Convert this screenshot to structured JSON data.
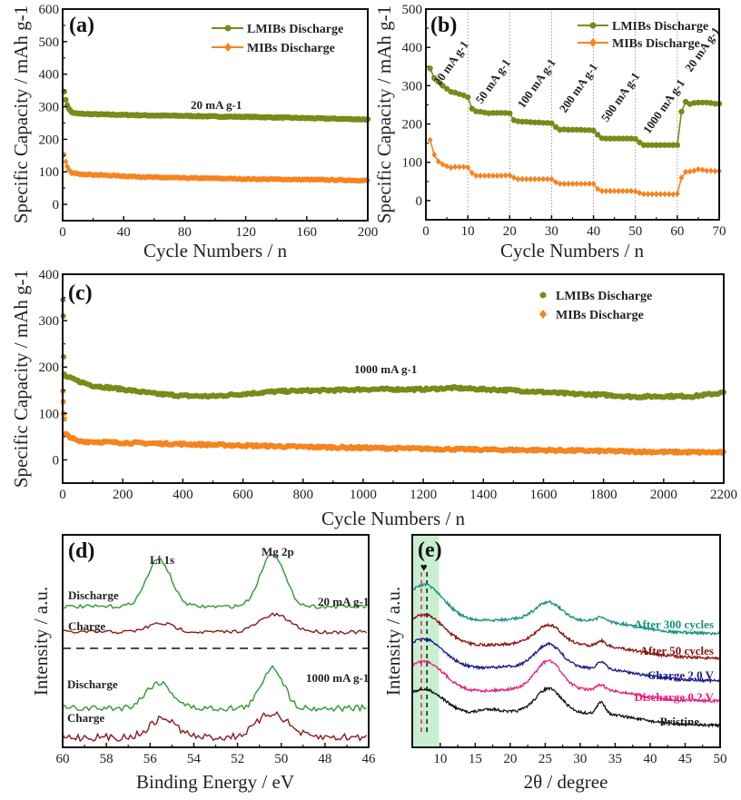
{
  "colors": {
    "lmibs": "#7a8a1a",
    "mibs": "#f5841f",
    "xps_discharge": "#2e9a2e",
    "xps_charge": "#8b1a1a",
    "xrd_300": "#1a9080",
    "xrd_50": "#8b1010",
    "xrd_charge": "#1a1a8a",
    "xrd_discharge": "#e8207a",
    "xrd_pristine": "#111111",
    "highlight": "#c8f0d0"
  },
  "chart_data": [
    {
      "id": "a",
      "type": "scatter",
      "panel_label": "(a)",
      "title": "",
      "xlabel": "Cycle Numbers / n",
      "ylabel": "Specific Capacity / mAh g-1",
      "xlim": [
        0,
        200
      ],
      "ylim": [
        -50,
        600
      ],
      "xticks": [
        0,
        40,
        80,
        120,
        160,
        200
      ],
      "yticks": [
        0,
        100,
        200,
        300,
        400,
        500,
        600
      ],
      "legend": [
        "LMIBs Discharge",
        "MIBs Discharge"
      ],
      "legend_position": "top-right",
      "annotations": [
        {
          "text": "20 mA g-1",
          "x": 100,
          "y": 310
        }
      ],
      "series": [
        {
          "name": "LMIBs Discharge",
          "x": [
            1,
            2,
            3,
            4,
            5,
            6,
            8,
            10,
            20,
            40,
            60,
            80,
            100,
            120,
            140,
            160,
            180,
            200
          ],
          "values": [
            348,
            320,
            305,
            295,
            288,
            283,
            280,
            279,
            277,
            275,
            273,
            272,
            270,
            269,
            267,
            265,
            263,
            261
          ]
        },
        {
          "name": "MIBs Discharge",
          "x": [
            1,
            2,
            3,
            4,
            5,
            6,
            8,
            10,
            20,
            40,
            60,
            80,
            100,
            120,
            140,
            160,
            180,
            200
          ],
          "values": [
            152,
            130,
            115,
            106,
            100,
            97,
            95,
            94,
            91,
            87,
            83,
            81,
            80,
            78,
            77,
            76,
            75,
            73
          ]
        }
      ]
    },
    {
      "id": "b",
      "type": "line",
      "panel_label": "(b)",
      "title": "",
      "xlabel": "Cycle Numbers / n",
      "ylabel": "Specific Capacity / mAh g-1",
      "xlim": [
        0,
        70
      ],
      "ylim": [
        -50,
        500
      ],
      "xticks": [
        0,
        10,
        20,
        30,
        40,
        50,
        60,
        70
      ],
      "yticks": [
        0,
        100,
        200,
        300,
        400,
        500
      ],
      "vlines": [
        10,
        20,
        30,
        40,
        50,
        60
      ],
      "legend": [
        "LMIBs Discharge",
        "MIBs Discharge"
      ],
      "legend_position": "top-right",
      "rate_labels": [
        {
          "text": "20 mA g-1",
          "x": 5
        },
        {
          "text": "50 mA g-1",
          "x": 15
        },
        {
          "text": "100 mA g-1",
          "x": 25
        },
        {
          "text": "200 mA g-1",
          "x": 35
        },
        {
          "text": "500 mA g-1",
          "x": 45
        },
        {
          "text": "1000 mA g-1",
          "x": 55
        },
        {
          "text": "20 mA g-1",
          "x": 65
        }
      ],
      "series": [
        {
          "name": "LMIBs Discharge",
          "x": [
            1,
            2,
            3,
            4,
            5,
            6,
            7,
            8,
            9,
            10,
            11,
            12,
            13,
            14,
            15,
            16,
            17,
            18,
            19,
            20,
            21,
            22,
            23,
            24,
            25,
            26,
            27,
            28,
            29,
            30,
            31,
            32,
            33,
            34,
            35,
            36,
            37,
            38,
            39,
            40,
            41,
            42,
            43,
            44,
            45,
            46,
            47,
            48,
            49,
            50,
            51,
            52,
            53,
            54,
            55,
            56,
            57,
            58,
            59,
            60,
            61,
            62,
            63,
            64,
            65,
            66,
            67,
            68,
            69,
            70
          ],
          "values": [
            345,
            320,
            310,
            300,
            292,
            284,
            282,
            278,
            275,
            270,
            240,
            233,
            232,
            230,
            228,
            229,
            229,
            229,
            229,
            228,
            210,
            207,
            206,
            206,
            205,
            204,
            204,
            203,
            203,
            202,
            192,
            185,
            186,
            185,
            185,
            185,
            185,
            184,
            184,
            183,
            172,
            163,
            162,
            162,
            162,
            162,
            162,
            162,
            162,
            161,
            152,
            145,
            145,
            145,
            145,
            145,
            145,
            145,
            145,
            145,
            232,
            258,
            252,
            255,
            256,
            256,
            256,
            255,
            253,
            253
          ]
        },
        {
          "name": "MIBs Discharge",
          "x": [
            1,
            2,
            3,
            4,
            5,
            6,
            7,
            8,
            9,
            10,
            11,
            12,
            13,
            14,
            15,
            16,
            17,
            18,
            19,
            20,
            21,
            22,
            23,
            24,
            25,
            26,
            27,
            28,
            29,
            30,
            31,
            32,
            33,
            34,
            35,
            36,
            37,
            38,
            39,
            40,
            41,
            42,
            43,
            44,
            45,
            46,
            47,
            48,
            49,
            50,
            51,
            52,
            53,
            54,
            55,
            56,
            57,
            58,
            59,
            60,
            61,
            62,
            63,
            64,
            65,
            66,
            67,
            68,
            69,
            70
          ],
          "values": [
            158,
            120,
            102,
            95,
            90,
            86,
            88,
            88,
            88,
            87,
            72,
            65,
            65,
            65,
            65,
            65,
            65,
            65,
            66,
            66,
            60,
            56,
            56,
            56,
            56,
            56,
            56,
            56,
            56,
            56,
            48,
            44,
            44,
            44,
            44,
            44,
            44,
            44,
            44,
            44,
            30,
            25,
            25,
            25,
            25,
            25,
            25,
            25,
            25,
            24,
            20,
            17,
            17,
            17,
            17,
            17,
            17,
            17,
            16,
            18,
            60,
            75,
            76,
            78,
            82,
            80,
            78,
            78,
            77,
            77
          ]
        }
      ]
    },
    {
      "id": "c",
      "type": "scatter",
      "panel_label": "(c)",
      "title": "",
      "xlabel": "Cycle Numbers / n",
      "ylabel": "Specific Capacity / mAh g-1",
      "xlim": [
        0,
        2200
      ],
      "ylim": [
        -50,
        400
      ],
      "xticks": [
        0,
        200,
        400,
        600,
        800,
        1000,
        1200,
        1400,
        1600,
        1800,
        2000,
        2200
      ],
      "yticks": [
        0,
        100,
        200,
        300,
        400
      ],
      "legend": [
        "LMIBs Discharge",
        "MIBs Discharge"
      ],
      "legend_position": "top-right",
      "annotations": [
        {
          "text": "1000 mA g-1",
          "x": 1100,
          "y": 190
        }
      ],
      "series": [
        {
          "name": "LMIBs Discharge",
          "x": [
            1,
            2,
            3,
            5,
            10,
            50,
            100,
            200,
            300,
            400,
            500,
            600,
            700,
            800,
            900,
            1000,
            1100,
            1200,
            1300,
            1400,
            1500,
            1600,
            1700,
            1800,
            1900,
            2000,
            2100,
            2200
          ],
          "values": [
            345,
            310,
            222,
            185,
            180,
            170,
            160,
            152,
            143,
            138,
            137,
            142,
            147,
            149,
            150,
            152,
            152,
            152,
            155,
            152,
            150,
            146,
            142,
            140,
            136,
            137,
            137,
            145
          ]
        },
        {
          "name": "MIBs Discharge",
          "x": [
            1,
            2,
            3,
            5,
            10,
            50,
            100,
            200,
            400,
            600,
            800,
            1000,
            1200,
            1400,
            1600,
            1800,
            2000,
            2200
          ],
          "values": [
            148,
            125,
            100,
            88,
            55,
            40,
            39,
            37,
            34,
            31,
            28,
            26,
            24,
            22,
            21,
            19,
            17,
            16
          ]
        }
      ]
    },
    {
      "id": "d",
      "type": "line",
      "panel_label": "(d)",
      "title": "",
      "xlabel": "Binding Energy / eV",
      "ylabel": "Intensity / a.u.",
      "xlim": [
        60,
        46
      ],
      "xticks": [
        60,
        58,
        56,
        54,
        52,
        50,
        48,
        46
      ],
      "peak_labels": [
        {
          "text": "Li 1s",
          "x": 55.6
        },
        {
          "text": "Mg 2p",
          "x": 50.4
        }
      ],
      "group_labels": [
        {
          "text": "20 mA g-1",
          "group": "top"
        },
        {
          "text": "1000 mA g-1",
          "group": "bottom"
        }
      ],
      "separator": "dashed",
      "series": [
        {
          "name": "Discharge",
          "group": "20 mA g-1",
          "peaks": [
            [
              55.6,
              0.55,
              0.55
            ],
            [
              50.4,
              0.62,
              0.55
            ]
          ],
          "baseline": 0.0
        },
        {
          "name": "Charge",
          "group": "20 mA g-1",
          "peaks": [
            [
              55.5,
              0.1,
              0.6
            ],
            [
              50.3,
              0.2,
              0.7
            ]
          ],
          "baseline": 0.0
        },
        {
          "name": "Discharge",
          "group": "1000 mA g-1",
          "peaks": [
            [
              55.6,
              0.3,
              0.6
            ],
            [
              50.4,
              0.48,
              0.5
            ]
          ],
          "baseline": 0.0
        },
        {
          "name": "Charge",
          "group": "1000 mA g-1",
          "peaks": [
            [
              55.4,
              0.22,
              0.6
            ],
            [
              50.4,
              0.28,
              0.7
            ]
          ],
          "baseline": 0.0
        }
      ]
    },
    {
      "id": "e",
      "type": "line",
      "panel_label": "(e)",
      "title": "",
      "xlabel": "2θ / degree",
      "ylabel": "Intensity / a.u.",
      "xlim": [
        6,
        50
      ],
      "xticks": [
        10,
        15,
        20,
        25,
        30,
        35,
        40,
        45,
        50
      ],
      "highlight_range": [
        6,
        9.7
      ],
      "marker": {
        "symbol": "♥",
        "x": 7.8
      },
      "dashed_lines": [
        {
          "x": 7.3,
          "color": "pink"
        },
        {
          "x": 8.1,
          "color": "black"
        }
      ],
      "series": [
        {
          "name": "Pristine",
          "label": "Pristine"
        },
        {
          "name": "Discharge 0.2 V",
          "label": "Discharge 0.2 V"
        },
        {
          "name": "Charge 2.0 V",
          "label": "Charge 2.0 V"
        },
        {
          "name": "After 50 cycles",
          "label": "After 50 cycles"
        },
        {
          "name": "After 300 cycles",
          "label": "After 300 cycles"
        }
      ]
    }
  ]
}
